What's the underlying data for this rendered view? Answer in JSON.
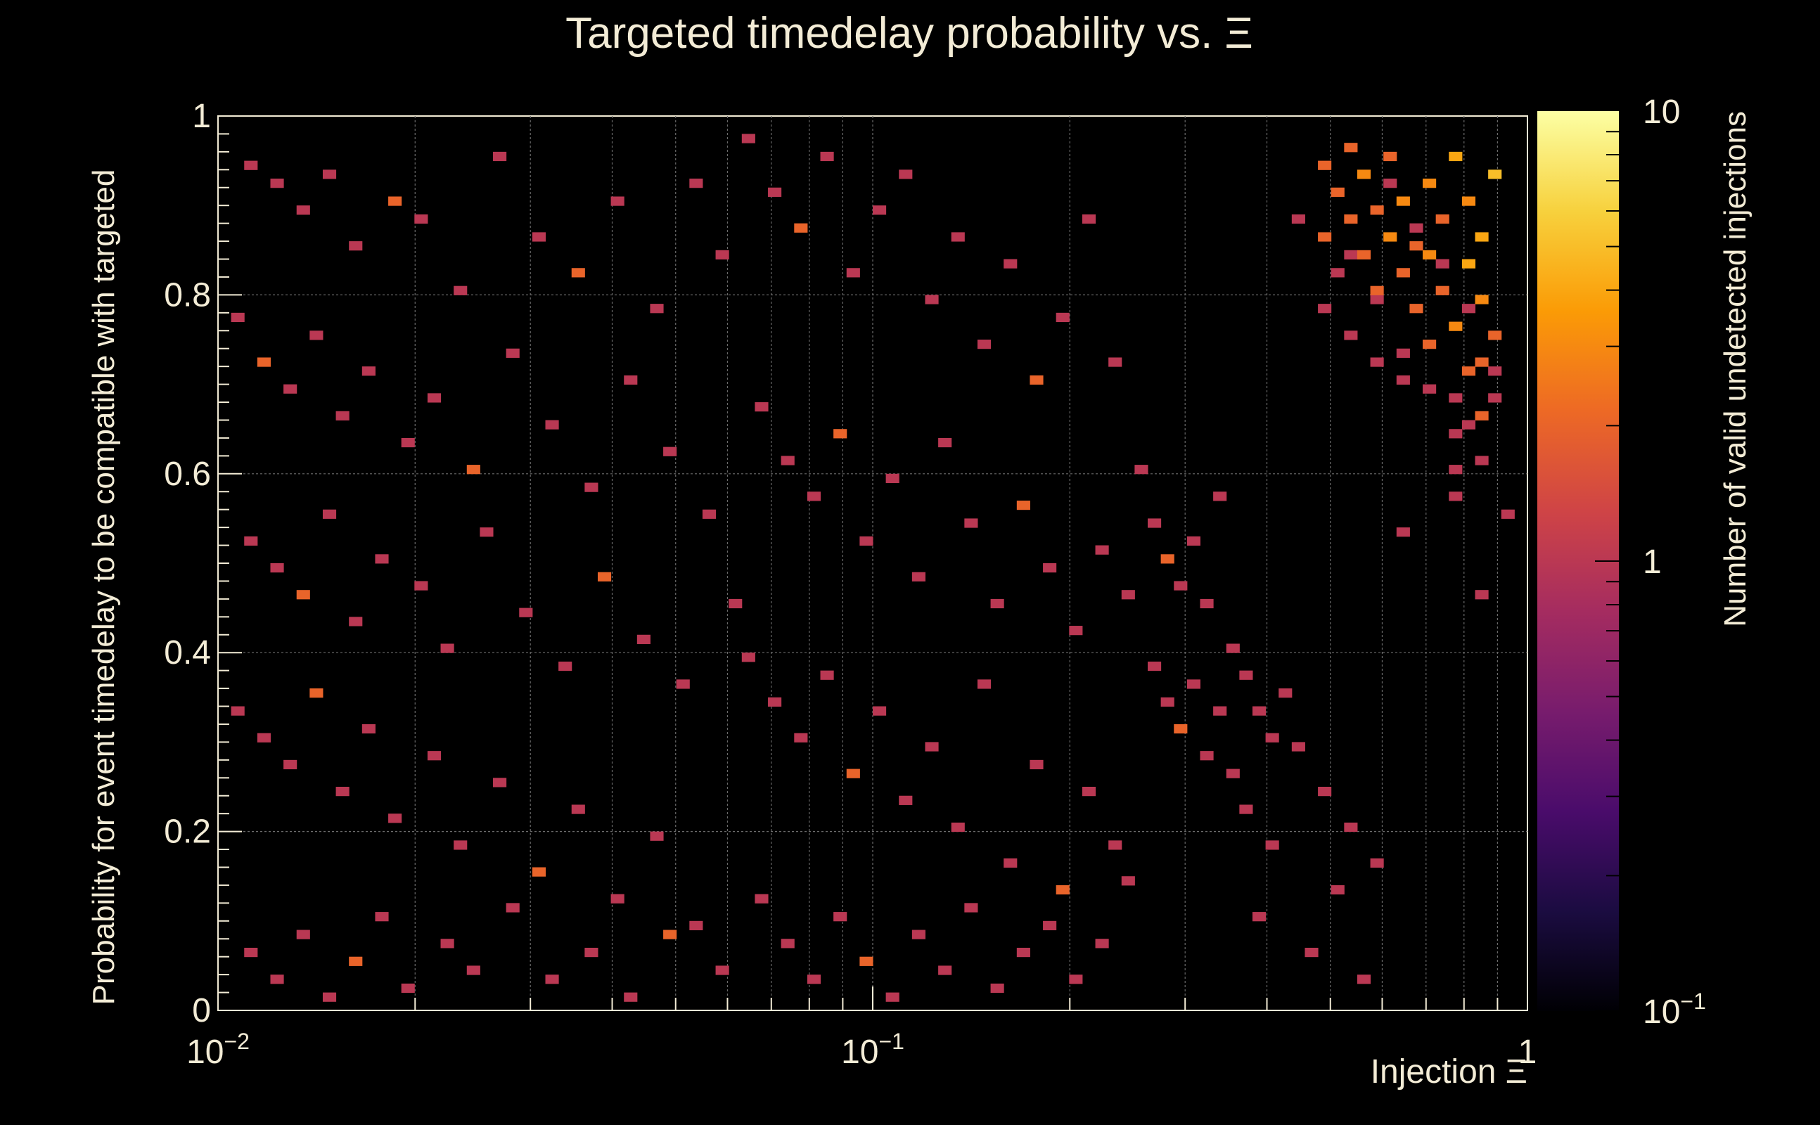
{
  "chart_data": {
    "type": "heatmap",
    "title": "Targeted timedelay probability vs.  Ξ",
    "xlabel": "Injection Ξ",
    "ylabel": "Probability for event timedelay to be compatible with targeted",
    "colorbar_label": "Number of valid undetected injections",
    "x_scale": "log",
    "xlim": [
      0.01,
      1
    ],
    "ylim": [
      0,
      1
    ],
    "x_ticks": [
      {
        "value": 0.01,
        "base": "10",
        "exp": "−2"
      },
      {
        "value": 0.1,
        "base": "10",
        "exp": "−1"
      },
      {
        "value": 1,
        "base": "1",
        "exp": ""
      }
    ],
    "y_ticks": [
      {
        "value": 0,
        "label": "0"
      },
      {
        "value": 0.2,
        "label": "0.2"
      },
      {
        "value": 0.4,
        "label": "0.4"
      },
      {
        "value": 0.6,
        "label": "0.6"
      },
      {
        "value": 0.8,
        "label": "0.8"
      },
      {
        "value": 1,
        "label": "1"
      }
    ],
    "color_scale": "log",
    "z_range": [
      0.1,
      10
    ],
    "z_ticks": [
      {
        "value": 0.1,
        "base": "10",
        "exp": "−1"
      },
      {
        "value": 1,
        "base": "1",
        "exp": ""
      },
      {
        "value": 10,
        "base": "10",
        "exp": ""
      }
    ],
    "colormap": [
      "#000004",
      "#1b0c41",
      "#4a0c6b",
      "#781c6d",
      "#a52c60",
      "#cf4446",
      "#ed6925",
      "#fb9b06",
      "#f7d13d",
      "#fcffa4"
    ],
    "grid": true,
    "bins": {
      "x_bins": 100,
      "y_bins": 100,
      "x_range_log10": [
        -2,
        0
      ],
      "y_range": [
        0,
        1
      ]
    },
    "background": "#000000",
    "text_color": "#f3ecd6",
    "cells": [
      [
        2,
        94,
        1
      ],
      [
        4,
        92,
        1
      ],
      [
        6,
        89,
        1
      ],
      [
        8,
        93,
        1
      ],
      [
        10,
        85,
        1
      ],
      [
        13,
        90,
        2
      ],
      [
        15,
        88,
        1
      ],
      [
        18,
        80,
        1
      ],
      [
        21,
        95,
        1
      ],
      [
        24,
        86,
        1
      ],
      [
        27,
        82,
        2
      ],
      [
        30,
        90,
        1
      ],
      [
        33,
        78,
        1
      ],
      [
        36,
        92,
        1
      ],
      [
        38,
        84,
        1
      ],
      [
        1,
        77,
        1
      ],
      [
        3,
        72,
        2
      ],
      [
        5,
        69,
        1
      ],
      [
        7,
        75,
        1
      ],
      [
        9,
        66,
        1
      ],
      [
        11,
        71,
        1
      ],
      [
        14,
        63,
        1
      ],
      [
        16,
        68,
        1
      ],
      [
        19,
        60,
        2
      ],
      [
        22,
        73,
        1
      ],
      [
        25,
        65,
        1
      ],
      [
        28,
        58,
        1
      ],
      [
        31,
        70,
        1
      ],
      [
        34,
        62,
        1
      ],
      [
        37,
        55,
        1
      ],
      [
        2,
        52,
        1
      ],
      [
        4,
        49,
        1
      ],
      [
        6,
        46,
        2
      ],
      [
        8,
        55,
        1
      ],
      [
        10,
        43,
        1
      ],
      [
        12,
        50,
        1
      ],
      [
        15,
        47,
        1
      ],
      [
        17,
        40,
        1
      ],
      [
        20,
        53,
        1
      ],
      [
        23,
        44,
        1
      ],
      [
        26,
        38,
        1
      ],
      [
        29,
        48,
        2
      ],
      [
        32,
        41,
        1
      ],
      [
        35,
        36,
        1
      ],
      [
        39,
        45,
        1
      ],
      [
        1,
        33,
        1
      ],
      [
        3,
        30,
        1
      ],
      [
        5,
        27,
        1
      ],
      [
        7,
        35,
        2
      ],
      [
        9,
        24,
        1
      ],
      [
        11,
        31,
        1
      ],
      [
        13,
        21,
        1
      ],
      [
        16,
        28,
        1
      ],
      [
        18,
        18,
        1
      ],
      [
        21,
        25,
        1
      ],
      [
        24,
        15,
        2
      ],
      [
        27,
        22,
        1
      ],
      [
        30,
        12,
        1
      ],
      [
        33,
        19,
        1
      ],
      [
        36,
        9,
        1
      ],
      [
        2,
        6,
        1
      ],
      [
        4,
        3,
        1
      ],
      [
        6,
        8,
        1
      ],
      [
        8,
        1,
        1
      ],
      [
        10,
        5,
        2
      ],
      [
        12,
        10,
        1
      ],
      [
        14,
        2,
        1
      ],
      [
        17,
        7,
        1
      ],
      [
        19,
        4,
        1
      ],
      [
        22,
        11,
        1
      ],
      [
        25,
        3,
        1
      ],
      [
        28,
        6,
        1
      ],
      [
        31,
        1,
        1
      ],
      [
        34,
        8,
        2
      ],
      [
        38,
        4,
        1
      ],
      [
        40,
        97,
        1
      ],
      [
        42,
        91,
        1
      ],
      [
        44,
        87,
        2
      ],
      [
        46,
        95,
        1
      ],
      [
        48,
        82,
        1
      ],
      [
        50,
        89,
        1
      ],
      [
        52,
        93,
        1
      ],
      [
        54,
        79,
        1
      ],
      [
        56,
        86,
        1
      ],
      [
        58,
        74,
        1
      ],
      [
        60,
        83,
        1
      ],
      [
        62,
        70,
        2
      ],
      [
        64,
        77,
        1
      ],
      [
        66,
        88,
        1
      ],
      [
        68,
        72,
        1
      ],
      [
        41,
        67,
        1
      ],
      [
        43,
        61,
        1
      ],
      [
        45,
        57,
        1
      ],
      [
        47,
        64,
        2
      ],
      [
        49,
        52,
        1
      ],
      [
        51,
        59,
        1
      ],
      [
        53,
        48,
        1
      ],
      [
        55,
        63,
        1
      ],
      [
        57,
        54,
        1
      ],
      [
        59,
        45,
        1
      ],
      [
        61,
        56,
        2
      ],
      [
        63,
        49,
        1
      ],
      [
        65,
        42,
        1
      ],
      [
        67,
        51,
        1
      ],
      [
        69,
        46,
        1
      ],
      [
        40,
        39,
        1
      ],
      [
        42,
        34,
        1
      ],
      [
        44,
        30,
        1
      ],
      [
        46,
        37,
        1
      ],
      [
        48,
        26,
        2
      ],
      [
        50,
        33,
        1
      ],
      [
        52,
        23,
        1
      ],
      [
        54,
        29,
        1
      ],
      [
        56,
        20,
        1
      ],
      [
        58,
        36,
        1
      ],
      [
        60,
        16,
        1
      ],
      [
        62,
        27,
        1
      ],
      [
        64,
        13,
        2
      ],
      [
        66,
        24,
        1
      ],
      [
        68,
        18,
        1
      ],
      [
        41,
        12,
        1
      ],
      [
        43,
        7,
        1
      ],
      [
        45,
        3,
        1
      ],
      [
        47,
        10,
        1
      ],
      [
        49,
        5,
        2
      ],
      [
        51,
        1,
        1
      ],
      [
        53,
        8,
        1
      ],
      [
        55,
        4,
        1
      ],
      [
        57,
        11,
        1
      ],
      [
        59,
        2,
        1
      ],
      [
        61,
        6,
        1
      ],
      [
        63,
        9,
        1
      ],
      [
        65,
        3,
        1
      ],
      [
        67,
        7,
        1
      ],
      [
        69,
        14,
        1
      ],
      [
        70,
        60,
        1
      ],
      [
        71,
        54,
        1
      ],
      [
        72,
        50,
        2
      ],
      [
        73,
        47,
        1
      ],
      [
        74,
        52,
        1
      ],
      [
        75,
        45,
        1
      ],
      [
        76,
        57,
        1
      ],
      [
        77,
        40,
        1
      ],
      [
        71,
        38,
        1
      ],
      [
        72,
        34,
        1
      ],
      [
        73,
        31,
        2
      ],
      [
        74,
        36,
        1
      ],
      [
        75,
        28,
        1
      ],
      [
        76,
        33,
        1
      ],
      [
        77,
        26,
        1
      ],
      [
        78,
        37,
        1
      ],
      [
        79,
        33,
        1
      ],
      [
        80,
        30,
        1
      ],
      [
        81,
        35,
        1
      ],
      [
        78,
        22,
        1
      ],
      [
        80,
        18,
        1
      ],
      [
        82,
        29,
        1
      ],
      [
        84,
        24,
        1
      ],
      [
        86,
        20,
        1
      ],
      [
        88,
        16,
        1
      ],
      [
        79,
        10,
        1
      ],
      [
        83,
        6,
        1
      ],
      [
        85,
        13,
        1
      ],
      [
        87,
        3,
        1
      ],
      [
        82,
        88,
        1
      ],
      [
        86,
        84,
        1
      ],
      [
        88,
        79,
        1
      ],
      [
        90,
        73,
        1
      ],
      [
        92,
        69,
        1
      ],
      [
        94,
        64,
        1
      ],
      [
        96,
        61,
        1
      ],
      [
        98,
        55,
        1
      ],
      [
        89,
        92,
        1
      ],
      [
        91,
        87,
        1
      ],
      [
        93,
        83,
        1
      ],
      [
        95,
        78,
        1
      ],
      [
        97,
        71,
        1
      ],
      [
        84,
        94,
        2
      ],
      [
        85,
        91,
        2
      ],
      [
        86,
        96,
        2
      ],
      [
        87,
        93,
        3
      ],
      [
        88,
        89,
        2
      ],
      [
        89,
        95,
        2
      ],
      [
        90,
        90,
        3
      ],
      [
        91,
        85,
        2
      ],
      [
        92,
        92,
        3
      ],
      [
        93,
        88,
        2
      ],
      [
        94,
        95,
        4
      ],
      [
        95,
        90,
        3
      ],
      [
        96,
        86,
        4
      ],
      [
        97,
        93,
        5
      ],
      [
        84,
        86,
        2
      ],
      [
        85,
        82,
        1
      ],
      [
        86,
        88,
        2
      ],
      [
        87,
        84,
        2
      ],
      [
        88,
        80,
        2
      ],
      [
        89,
        86,
        3
      ],
      [
        90,
        82,
        2
      ],
      [
        91,
        78,
        2
      ],
      [
        92,
        84,
        3
      ],
      [
        93,
        80,
        2
      ],
      [
        94,
        76,
        3
      ],
      [
        95,
        83,
        4
      ],
      [
        96,
        79,
        3
      ],
      [
        97,
        75,
        2
      ],
      [
        84,
        78,
        1
      ],
      [
        86,
        75,
        1
      ],
      [
        88,
        72,
        1
      ],
      [
        90,
        70,
        1
      ],
      [
        92,
        74,
        2
      ],
      [
        94,
        68,
        1
      ],
      [
        95,
        71,
        2
      ],
      [
        96,
        66,
        2
      ],
      [
        97,
        68,
        1
      ],
      [
        96,
        72,
        2
      ],
      [
        95,
        65,
        1
      ],
      [
        94,
        60,
        1
      ],
      [
        96,
        46,
        1
      ],
      [
        90,
        53,
        1
      ],
      [
        94,
        57,
        1
      ]
    ]
  }
}
